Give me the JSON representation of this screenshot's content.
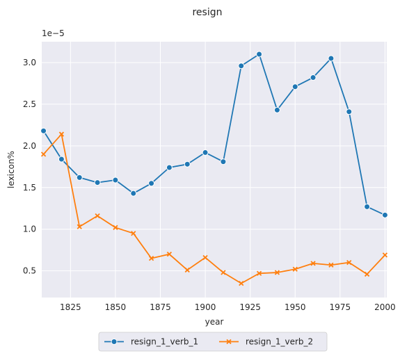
{
  "chart_data": {
    "type": "line",
    "title": "resign",
    "xlabel": "year",
    "ylabel": "lexicon%",
    "y_offset_label": "1e−5",
    "xlim": [
      1809,
      2001
    ],
    "ylim": [
      0.18,
      3.25
    ],
    "x_ticks": [
      1825,
      1850,
      1875,
      1900,
      1925,
      1950,
      1975,
      2000
    ],
    "y_ticks": [
      0.5,
      1.0,
      1.5,
      2.0,
      2.5,
      3.0
    ],
    "grid": true,
    "background": "#eaeaf2",
    "legend_position": "bottom-center",
    "series": [
      {
        "name": "resign_1_verb_1",
        "color": "#1f77b4",
        "marker": "circle",
        "x": [
          1810,
          1820,
          1830,
          1840,
          1850,
          1860,
          1870,
          1880,
          1890,
          1900,
          1910,
          1920,
          1930,
          1940,
          1950,
          1960,
          1970,
          1980,
          1990,
          2000
        ],
        "values": [
          2.18,
          1.84,
          1.62,
          1.56,
          1.59,
          1.43,
          1.55,
          1.74,
          1.78,
          1.92,
          1.81,
          2.96,
          3.1,
          2.43,
          2.71,
          2.82,
          3.05,
          2.41,
          1.27,
          1.17
        ]
      },
      {
        "name": "resign_1_verb_2",
        "color": "#ff7f0e",
        "marker": "x",
        "x": [
          1810,
          1820,
          1830,
          1840,
          1850,
          1860,
          1870,
          1880,
          1890,
          1900,
          1910,
          1920,
          1930,
          1940,
          1950,
          1960,
          1970,
          1980,
          1990,
          2000
        ],
        "values": [
          1.9,
          2.14,
          1.03,
          1.16,
          1.02,
          0.95,
          0.65,
          0.7,
          0.51,
          0.66,
          0.48,
          0.35,
          0.47,
          0.48,
          0.52,
          0.59,
          0.57,
          0.6,
          0.46,
          0.69
        ]
      }
    ]
  }
}
